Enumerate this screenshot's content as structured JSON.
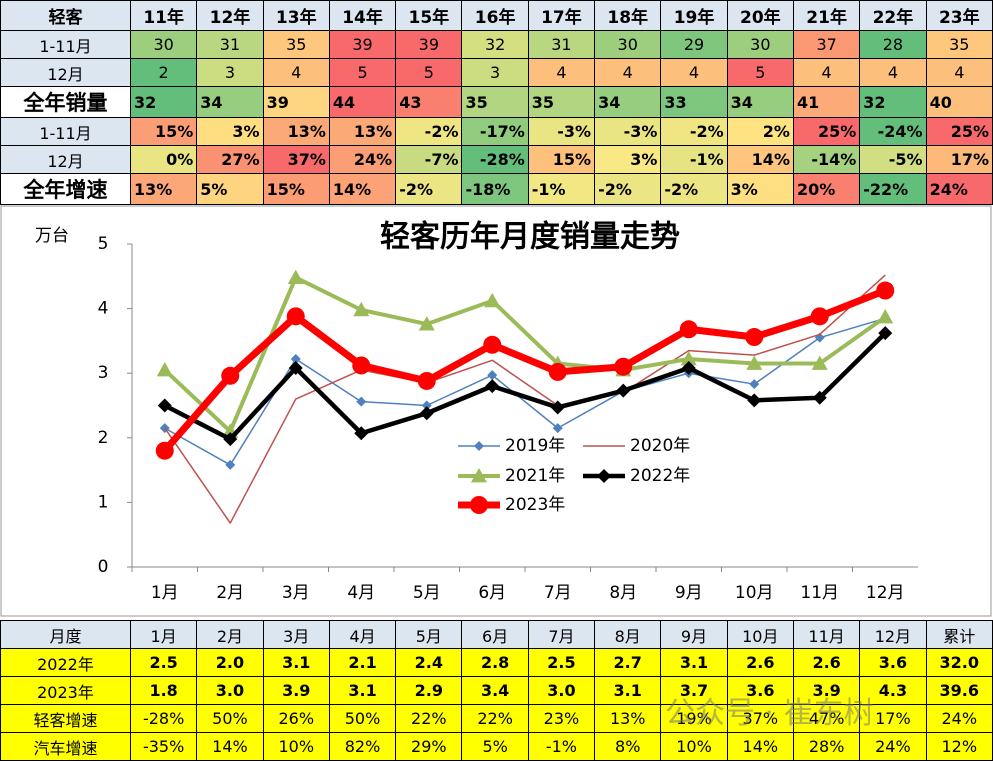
{
  "top_table": {
    "header": [
      "轻客",
      "11年",
      "12年",
      "13年",
      "14年",
      "15年",
      "16年",
      "17年",
      "18年",
      "19年",
      "20年",
      "21年",
      "22年",
      "23年"
    ],
    "rows": [
      [
        "1-11月",
        "30",
        "31",
        "35",
        "39",
        "39",
        "32",
        "31",
        "30",
        "29",
        "30",
        "37",
        "28",
        "35"
      ],
      [
        "12月",
        "2",
        "3",
        "4",
        "5",
        "5",
        "3",
        "4",
        "4",
        "4",
        "5",
        "4",
        "4",
        "4"
      ],
      [
        "全年销量",
        "32",
        "34",
        "39",
        "44",
        "43",
        "35",
        "35",
        "34",
        "33",
        "34",
        "41",
        "32",
        "40"
      ],
      [
        "1-11月",
        "15%",
        "3%",
        "13%",
        "13%",
        "-2%",
        "-17%",
        "-3%",
        "-3%",
        "-2%",
        "2%",
        "25%",
        "-24%",
        "25%"
      ],
      [
        "12月",
        "0%",
        "27%",
        "37%",
        "24%",
        "-7%",
        "-28%",
        "15%",
        "3%",
        "-1%",
        "14%",
        "-14%",
        "-5%",
        "17%"
      ],
      [
        "全年增速",
        "13%",
        "5%",
        "15%",
        "14%",
        "-2%",
        "-18%",
        "-1%",
        "-2%",
        "-2%",
        "3%",
        "20%",
        "-22%",
        "24%"
      ]
    ]
  },
  "chart_data": {
    "type": "line",
    "title": "轻客历年月度销量走势",
    "y_label": "万台",
    "categories": [
      "1月",
      "2月",
      "3月",
      "4月",
      "5月",
      "6月",
      "7月",
      "8月",
      "9月",
      "10月",
      "11月",
      "12月"
    ],
    "ylim": [
      0,
      5
    ],
    "yticks": [
      0,
      1,
      2,
      3,
      4,
      5
    ],
    "grid": false,
    "series": [
      {
        "name": "2019年",
        "color": "#4f81bd",
        "marker": "diamond",
        "line_width": 1.5,
        "values": [
          2.15,
          1.58,
          3.22,
          2.56,
          2.5,
          2.97,
          2.15,
          2.72,
          3.0,
          2.83,
          3.55,
          3.85
        ]
      },
      {
        "name": "2020年",
        "color": "#c0504d",
        "marker": "none",
        "line_width": 1.5,
        "values": [
          2.15,
          0.68,
          2.6,
          3.05,
          2.85,
          3.2,
          2.5,
          2.7,
          3.35,
          3.28,
          3.6,
          4.52
        ]
      },
      {
        "name": "2021年",
        "color": "#9bbb59",
        "marker": "triangle",
        "line_width": 4,
        "values": [
          3.05,
          2.1,
          4.48,
          3.98,
          3.76,
          4.12,
          3.15,
          3.05,
          3.22,
          3.15,
          3.15,
          3.87
        ]
      },
      {
        "name": "2022年",
        "color": "#000000",
        "marker": "diamond",
        "line_width": 4.5,
        "values": [
          2.5,
          1.98,
          3.08,
          2.07,
          2.38,
          2.8,
          2.47,
          2.73,
          3.08,
          2.58,
          2.62,
          3.62
        ]
      },
      {
        "name": "2023年",
        "color": "#ff0000",
        "marker": "circle",
        "line_width": 7,
        "values": [
          1.8,
          2.96,
          3.88,
          3.12,
          2.88,
          3.44,
          3.02,
          3.1,
          3.68,
          3.56,
          3.88,
          4.28
        ]
      }
    ]
  },
  "bottom_table": {
    "header": [
      "月度",
      "1月",
      "2月",
      "3月",
      "4月",
      "5月",
      "6月",
      "7月",
      "8月",
      "9月",
      "10月",
      "11月",
      "12月",
      "累计"
    ],
    "rows": [
      [
        "2022年",
        "2.5",
        "2.0",
        "3.1",
        "2.1",
        "2.4",
        "2.8",
        "2.5",
        "2.7",
        "3.1",
        "2.6",
        "2.6",
        "3.6",
        "32.0"
      ],
      [
        "2023年",
        "1.8",
        "3.0",
        "3.9",
        "3.1",
        "2.9",
        "3.4",
        "3.0",
        "3.1",
        "3.7",
        "3.6",
        "3.9",
        "4.3",
        "39.6"
      ],
      [
        "轻客增速",
        "-28%",
        "50%",
        "26%",
        "50%",
        "22%",
        "22%",
        "23%",
        "13%",
        "19%",
        "37%",
        "47%",
        "17%",
        "24%"
      ],
      [
        "汽车增速",
        "-35%",
        "14%",
        "10%",
        "82%",
        "29%",
        "5%",
        "-1%",
        "8%",
        "10%",
        "14%",
        "28%",
        "24%",
        "12%"
      ]
    ]
  },
  "watermark": "公众号 · 崔东树"
}
